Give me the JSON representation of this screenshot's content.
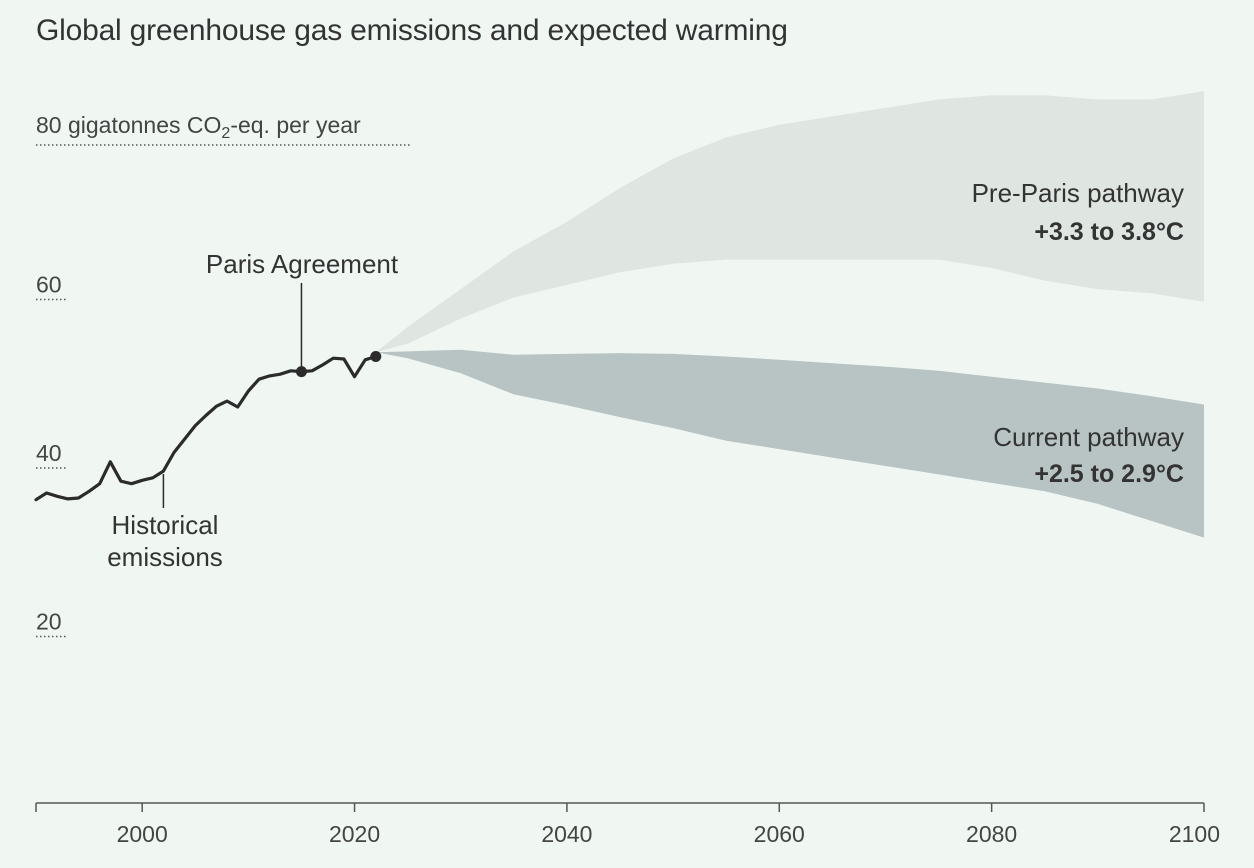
{
  "title": "Global greenhouse gas emissions and expected warming",
  "chart_data": {
    "type": "area",
    "title": "Global greenhouse gas emissions and expected warming",
    "ylabel_prefix": "80 gigatonnes CO",
    "ylabel_sub": "2",
    "ylabel_suffix": "-eq. per year",
    "xlim": [
      1990,
      2100
    ],
    "ylim": [
      0,
      80
    ],
    "yticks": [
      {
        "value": 80,
        "label": "80"
      },
      {
        "value": 60,
        "label": "60"
      },
      {
        "value": 40,
        "label": "40"
      },
      {
        "value": 20,
        "label": "20"
      }
    ],
    "xticks": [
      {
        "value": 2000,
        "label": "2000"
      },
      {
        "value": 2020,
        "label": "2020"
      },
      {
        "value": 2040,
        "label": "2040"
      },
      {
        "value": 2060,
        "label": "2060"
      },
      {
        "value": 2080,
        "label": "2080"
      },
      {
        "value": 2100,
        "label": "2100"
      }
    ],
    "historical": {
      "name": "Historical emissions",
      "color": "#2b2b2b",
      "x": [
        1990,
        1991,
        1992,
        1993,
        1994,
        1995,
        1996,
        1997,
        1998,
        1999,
        2000,
        2001,
        2002,
        2003,
        2004,
        2005,
        2006,
        2007,
        2008,
        2009,
        2010,
        2011,
        2012,
        2013,
        2014,
        2015,
        2016,
        2017,
        2018,
        2019,
        2020,
        2021,
        2022
      ],
      "y": [
        36.0,
        36.8,
        36.4,
        36.1,
        36.2,
        37.0,
        37.9,
        40.5,
        38.2,
        37.9,
        38.3,
        38.6,
        39.4,
        41.6,
        43.2,
        44.8,
        46.0,
        47.1,
        47.7,
        47.0,
        48.9,
        50.3,
        50.7,
        50.9,
        51.3,
        51.2,
        51.3,
        52.0,
        52.8,
        52.7,
        50.6,
        52.6,
        53.0
      ]
    },
    "pre_paris": {
      "name": "Pre-Paris pathway",
      "range_label": "+3.3 to 3.8°C",
      "color": "#dfe6e2",
      "x": [
        2022,
        2025,
        2030,
        2035,
        2040,
        2045,
        2050,
        2055,
        2060,
        2065,
        2070,
        2075,
        2080,
        2085,
        2090,
        2095,
        2100
      ],
      "upper": [
        53.5,
        56.5,
        61.0,
        65.5,
        69.0,
        73.0,
        76.5,
        79.0,
        80.5,
        81.5,
        82.5,
        83.5,
        84.0,
        84.0,
        83.5,
        83.5,
        84.5
      ],
      "lower": [
        53.5,
        54.5,
        57.5,
        60.0,
        61.5,
        63.0,
        64.0,
        64.5,
        64.5,
        64.5,
        64.5,
        64.5,
        63.5,
        62.0,
        61.0,
        60.5,
        59.5
      ]
    },
    "current": {
      "name": "Current pathway",
      "range_label": "+2.5 to 2.9°C",
      "color": "#b7c4c3",
      "x": [
        2022,
        2025,
        2030,
        2035,
        2040,
        2045,
        2050,
        2055,
        2060,
        2065,
        2070,
        2075,
        2080,
        2085,
        2090,
        2095,
        2100
      ],
      "upper": [
        53.5,
        53.6,
        53.8,
        53.2,
        53.3,
        53.4,
        53.3,
        53.0,
        52.6,
        52.2,
        51.8,
        51.3,
        50.6,
        49.9,
        49.2,
        48.3,
        47.3
      ],
      "lower": [
        53.5,
        52.8,
        51.0,
        48.5,
        47.2,
        45.8,
        44.5,
        43.0,
        42.0,
        41.0,
        40.0,
        39.0,
        38.0,
        37.0,
        35.5,
        33.5,
        31.5
      ]
    },
    "annotations": {
      "paris": {
        "label": "Paris Agreement",
        "year": 2015,
        "value": 51.2
      },
      "historical": {
        "label_line1": "Historical",
        "label_line2": "emissions",
        "year": 2002,
        "value": 39.4
      },
      "latest": {
        "year": 2022,
        "value": 53.0
      }
    },
    "grid": false
  }
}
